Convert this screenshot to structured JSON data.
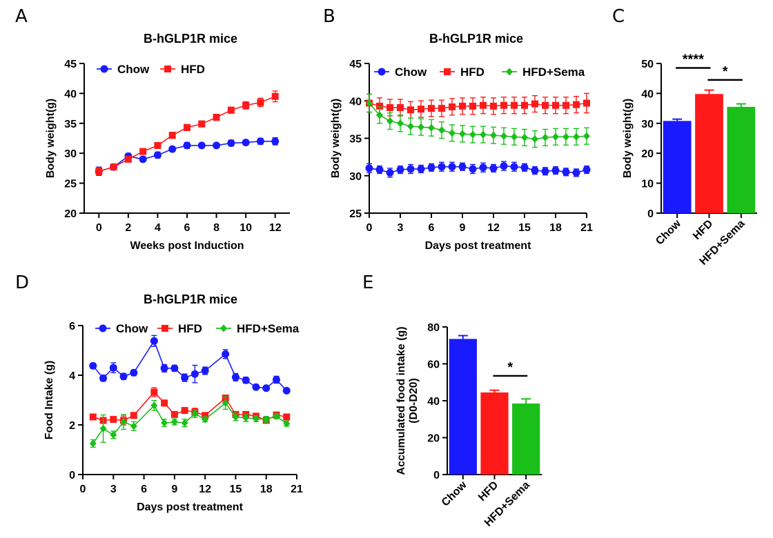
{
  "colors": {
    "chow": "#1a1aff",
    "hfd": "#ff1a1a",
    "sema": "#1abf1a",
    "axis": "#000000"
  },
  "chart_data": [
    {
      "id": "A",
      "panel_letter": "A",
      "type": "line",
      "title": "B-hGLP1R mice",
      "xlabel": "Weeks post Induction",
      "ylabel": "Body weight(g)",
      "xlim": [
        -1,
        13
      ],
      "ylim": [
        20,
        45
      ],
      "xticks": [
        0,
        2,
        4,
        6,
        8,
        10,
        12
      ],
      "yticks": [
        20,
        25,
        30,
        35,
        40,
        45
      ],
      "legend": [
        "Chow",
        "HFD"
      ],
      "series": [
        {
          "name": "Chow",
          "color_key": "chow",
          "marker": "circle",
          "x": [
            0,
            1,
            2,
            3,
            4,
            5,
            6,
            7,
            8,
            9,
            10,
            11,
            12
          ],
          "y": [
            27.0,
            27.7,
            29.5,
            29.0,
            29.7,
            30.7,
            31.3,
            31.3,
            31.3,
            31.7,
            31.8,
            32.0,
            32.0
          ],
          "err": [
            0.7,
            0.4,
            0.5,
            0.4,
            0.5,
            0.4,
            0.5,
            0.4,
            0.4,
            0.5,
            0.4,
            0.5,
            0.6
          ]
        },
        {
          "name": "HFD",
          "color_key": "hfd",
          "marker": "square",
          "x": [
            0,
            1,
            2,
            3,
            4,
            5,
            6,
            7,
            8,
            9,
            10,
            11,
            12
          ],
          "y": [
            27.0,
            27.7,
            29.0,
            30.3,
            31.3,
            33.0,
            34.3,
            34.9,
            36.0,
            37.2,
            38.0,
            38.5,
            39.5
          ],
          "err": [
            0.6,
            0.4,
            0.4,
            0.4,
            0.4,
            0.5,
            0.5,
            0.5,
            0.5,
            0.5,
            0.6,
            0.7,
            0.9
          ]
        }
      ]
    },
    {
      "id": "B",
      "panel_letter": "B",
      "type": "line",
      "title": "B-hGLP1R mice",
      "xlabel": "Days post treatment",
      "ylabel": "Body weight(g)",
      "xlim": [
        0,
        21
      ],
      "ylim": [
        25,
        45
      ],
      "xticks": [
        0,
        3,
        6,
        9,
        12,
        15,
        18,
        21
      ],
      "yticks": [
        25,
        30,
        35,
        40,
        45
      ],
      "legend": [
        "Chow",
        "HFD",
        "HFD+Sema"
      ],
      "series": [
        {
          "name": "Chow",
          "color_key": "chow",
          "marker": "circle",
          "x": [
            0,
            1,
            2,
            3,
            4,
            5,
            6,
            7,
            8,
            9,
            10,
            11,
            12,
            13,
            14,
            15,
            16,
            17,
            18,
            19,
            20,
            21
          ],
          "y": [
            31.0,
            30.8,
            30.4,
            30.8,
            30.9,
            30.9,
            31.1,
            31.2,
            31.2,
            31.2,
            30.9,
            31.1,
            31.0,
            31.3,
            31.2,
            31.1,
            30.7,
            30.6,
            30.7,
            30.5,
            30.4,
            30.8
          ],
          "err": [
            0.6,
            0.5,
            0.6,
            0.5,
            0.6,
            0.5,
            0.5,
            0.6,
            0.6,
            0.5,
            0.6,
            0.6,
            0.5,
            0.6,
            0.6,
            0.5,
            0.5,
            0.5,
            0.5,
            0.5,
            0.5,
            0.5
          ]
        },
        {
          "name": "HFD",
          "color_key": "hfd",
          "marker": "square",
          "x": [
            0,
            1,
            2,
            3,
            4,
            5,
            6,
            7,
            8,
            9,
            10,
            11,
            12,
            13,
            14,
            15,
            16,
            17,
            18,
            19,
            20,
            21
          ],
          "y": [
            39.7,
            39.3,
            39.1,
            39.1,
            38.8,
            38.9,
            39.0,
            39.0,
            39.2,
            39.3,
            39.3,
            39.4,
            39.3,
            39.4,
            39.4,
            39.4,
            39.6,
            39.4,
            39.4,
            39.4,
            39.5,
            39.7
          ],
          "err": [
            1.2,
            1.1,
            1.1,
            1.1,
            1.1,
            1.1,
            1.1,
            1.1,
            1.1,
            1.1,
            1.1,
            1.1,
            1.1,
            1.1,
            1.1,
            1.1,
            1.1,
            1.1,
            1.1,
            1.1,
            1.1,
            1.3
          ]
        },
        {
          "name": "HFD+Sema",
          "color_key": "sema",
          "marker": "diamond",
          "x": [
            0,
            1,
            2,
            3,
            4,
            5,
            6,
            7,
            8,
            9,
            10,
            11,
            12,
            13,
            14,
            15,
            16,
            17,
            18,
            19,
            20,
            21
          ],
          "y": [
            39.7,
            38.1,
            37.3,
            37.0,
            36.6,
            36.5,
            36.4,
            36.1,
            35.7,
            35.6,
            35.5,
            35.5,
            35.4,
            35.3,
            35.2,
            35.1,
            34.9,
            35.1,
            35.2,
            35.2,
            35.2,
            35.3
          ],
          "err": [
            1.2,
            1.1,
            1.1,
            1.1,
            1.1,
            1.1,
            1.1,
            1.1,
            1.1,
            1.1,
            1.1,
            1.1,
            1.1,
            1.1,
            1.1,
            1.1,
            1.1,
            1.1,
            1.1,
            1.1,
            1.1,
            1.1
          ]
        }
      ]
    },
    {
      "id": "C",
      "panel_letter": "C",
      "type": "bar",
      "title": "",
      "xlabel": "",
      "ylabel": "Body weight(g)",
      "ylim": [
        0,
        50
      ],
      "yticks": [
        0,
        10,
        20,
        30,
        40,
        50
      ],
      "categories": [
        "Chow",
        "HFD",
        "HFD+Sema"
      ],
      "values": [
        30.8,
        39.8,
        35.5
      ],
      "err": [
        0.6,
        1.3,
        1.0
      ],
      "bar_color_keys": [
        "chow",
        "hfd",
        "sema"
      ],
      "significance": [
        {
          "from": 0,
          "to": 1,
          "label": "****",
          "y": 48.5
        },
        {
          "from": 1,
          "to": 2,
          "label": "*",
          "y": 44.5
        }
      ]
    },
    {
      "id": "D",
      "panel_letter": "D",
      "type": "line",
      "title": "B-hGLP1R mice",
      "xlabel": "Days post treatment",
      "ylabel": "Food Intake (g)",
      "xlim": [
        0,
        21
      ],
      "ylim": [
        0,
        6
      ],
      "xticks": [
        0,
        3,
        6,
        9,
        12,
        15,
        18,
        21
      ],
      "yticks": [
        0,
        2,
        4,
        6
      ],
      "legend": [
        "Chow",
        "HFD",
        "HFD+Sema"
      ],
      "series": [
        {
          "name": "Chow",
          "color_key": "chow",
          "marker": "circle",
          "x": [
            1,
            2,
            3,
            4,
            5,
            7,
            8,
            9,
            10,
            11,
            12,
            14,
            15,
            16,
            17,
            18,
            19,
            20
          ],
          "y": [
            4.38,
            3.88,
            4.3,
            3.95,
            4.1,
            5.38,
            4.28,
            4.28,
            3.9,
            4.05,
            4.18,
            4.85,
            3.92,
            3.8,
            3.52,
            3.48,
            3.82,
            3.38
          ],
          "err": [
            0.1,
            0.12,
            0.2,
            0.12,
            0.12,
            0.22,
            0.15,
            0.12,
            0.15,
            0.35,
            0.15,
            0.18,
            0.15,
            0.12,
            0.08,
            0.08,
            0.14,
            0.08
          ]
        },
        {
          "name": "HFD",
          "color_key": "hfd",
          "marker": "square",
          "x": [
            1,
            2,
            3,
            4,
            5,
            7,
            8,
            9,
            10,
            11,
            12,
            14,
            15,
            16,
            17,
            18,
            19,
            20
          ],
          "y": [
            2.32,
            2.18,
            2.22,
            2.18,
            2.38,
            3.32,
            2.88,
            2.42,
            2.58,
            2.52,
            2.38,
            3.08,
            2.42,
            2.42,
            2.35,
            2.18,
            2.4,
            2.32
          ],
          "err": [
            0.12,
            0.1,
            0.1,
            0.18,
            0.1,
            0.18,
            0.12,
            0.1,
            0.1,
            0.15,
            0.1,
            0.12,
            0.1,
            0.1,
            0.1,
            0.1,
            0.08,
            0.1
          ]
        },
        {
          "name": "HFD+Sema",
          "color_key": "sema",
          "marker": "diamond",
          "x": [
            1,
            2,
            3,
            4,
            5,
            7,
            8,
            9,
            10,
            11,
            12,
            14,
            15,
            16,
            17,
            18,
            19,
            20
          ],
          "y": [
            1.25,
            1.85,
            1.6,
            2.12,
            1.95,
            2.78,
            2.08,
            2.12,
            2.08,
            2.45,
            2.22,
            2.88,
            2.32,
            2.28,
            2.25,
            2.22,
            2.35,
            2.05
          ],
          "err": [
            0.15,
            0.55,
            0.15,
            0.3,
            0.18,
            0.2,
            0.15,
            0.12,
            0.15,
            0.15,
            0.1,
            0.25,
            0.15,
            0.15,
            0.12,
            0.12,
            0.1,
            0.1
          ]
        }
      ]
    },
    {
      "id": "E",
      "panel_letter": "E",
      "type": "bar",
      "title": "",
      "xlabel": "",
      "ylabel": "Accumulated food intake (g)",
      "ylabel2": "(D0-D20)",
      "ylim": [
        0,
        80
      ],
      "yticks": [
        0,
        20,
        40,
        60,
        80
      ],
      "categories": [
        "Chow",
        "HFD",
        "HFD+Sema"
      ],
      "values": [
        73.5,
        44.5,
        38.5
      ],
      "err": [
        1.8,
        1.2,
        2.5
      ],
      "bar_color_keys": [
        "chow",
        "hfd",
        "sema"
      ],
      "significance": [
        {
          "from": 1,
          "to": 2,
          "label": "*",
          "y": 53.5
        }
      ]
    }
  ]
}
